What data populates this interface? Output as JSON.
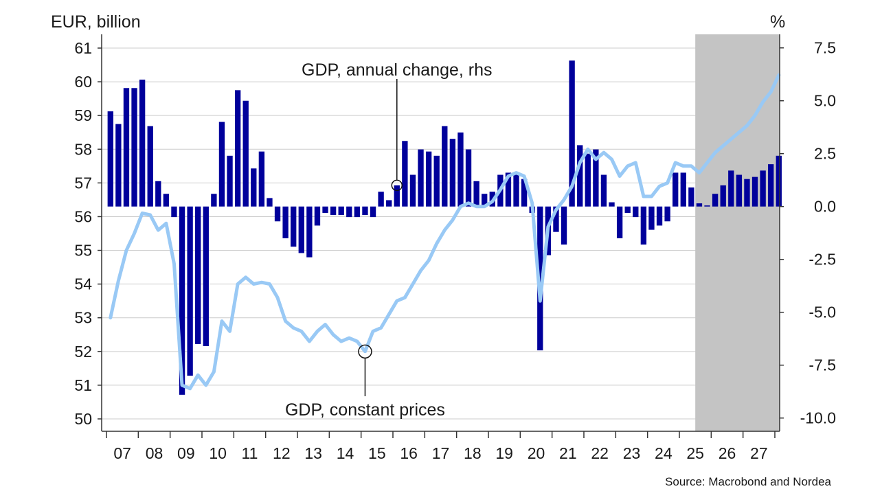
{
  "chart_data": {
    "type": "bar+line",
    "left_axis_label": "EUR, billion",
    "right_axis_label": "%",
    "left_ylim": [
      50,
      61
    ],
    "left_ticks": [
      "50",
      "51",
      "52",
      "53",
      "54",
      "55",
      "56",
      "57",
      "58",
      "59",
      "60",
      "61"
    ],
    "right_ylim": [
      -10,
      7.5
    ],
    "right_ticks": [
      "-10.0",
      "-7.5",
      "-5.0",
      "-2.5",
      "0.0",
      "2.5",
      "5.0",
      "7.5"
    ],
    "x_ticks": [
      "07",
      "08",
      "09",
      "10",
      "11",
      "12",
      "13",
      "14",
      "15",
      "16",
      "17",
      "18",
      "19",
      "20",
      "21",
      "22",
      "23",
      "24",
      "25",
      "26",
      "27"
    ],
    "forecast_shade_start": "2025Q3",
    "annotations": {
      "annual_change": "GDP, annual change, rhs",
      "constant_prices": "GDP, constant prices"
    },
    "source": "Source: Macrobond and Nordea",
    "colors": {
      "bars": "#00009b",
      "line": "#99c9f5",
      "shade": "#c4c4c4",
      "grid": "#cccccc"
    },
    "series": [
      {
        "name": "GDP, annual change, rhs",
        "axis": "right",
        "kind": "bar",
        "start": "2007Q1",
        "values": [
          4.5,
          3.9,
          5.6,
          5.6,
          6.0,
          3.8,
          1.2,
          0.6,
          -0.5,
          -8.9,
          -8.0,
          -6.5,
          -6.6,
          0.6,
          4.0,
          2.4,
          5.5,
          5.0,
          1.8,
          2.6,
          0.4,
          -0.7,
          -1.5,
          -1.9,
          -2.2,
          -2.4,
          -0.9,
          -0.3,
          -0.4,
          -0.4,
          -0.5,
          -0.5,
          -0.4,
          -0.5,
          0.7,
          0.3,
          1.0,
          3.1,
          1.5,
          2.7,
          2.6,
          2.4,
          3.8,
          3.2,
          3.5,
          2.7,
          1.2,
          0.6,
          0.7,
          1.5,
          1.6,
          1.5,
          1.3,
          -0.3,
          -6.8,
          -2.3,
          -1.2,
          -1.8,
          6.9,
          2.9,
          2.5,
          2.7,
          1.5,
          0.2,
          -1.5,
          -0.3,
          -0.5,
          -1.8,
          -1.1,
          -0.9,
          -0.7,
          1.6,
          1.6,
          0.9,
          0.15,
          0.05,
          0.6,
          1.0,
          1.7,
          1.5,
          1.3,
          1.4,
          1.7,
          2.0,
          2.4
        ]
      },
      {
        "name": "GDP, constant prices",
        "axis": "left",
        "kind": "line",
        "start": "2007Q1",
        "values": [
          53.0,
          54.1,
          55.0,
          55.5,
          56.1,
          56.05,
          55.6,
          55.8,
          54.6,
          51.0,
          50.9,
          51.3,
          51.0,
          51.4,
          52.9,
          52.6,
          54.0,
          54.2,
          54.0,
          54.05,
          54.0,
          53.6,
          52.9,
          52.7,
          52.6,
          52.3,
          52.6,
          52.8,
          52.5,
          52.3,
          52.4,
          52.3,
          52.0,
          52.6,
          52.7,
          53.1,
          53.5,
          53.6,
          54.0,
          54.4,
          54.7,
          55.2,
          55.6,
          55.9,
          56.3,
          56.4,
          56.3,
          56.3,
          56.45,
          56.8,
          57.2,
          57.3,
          57.2,
          56.4,
          53.5,
          55.7,
          56.2,
          56.5,
          56.9,
          57.6,
          58.0,
          57.7,
          57.9,
          57.7,
          57.2,
          57.5,
          57.6,
          56.6,
          56.6,
          56.9,
          57.0,
          57.6,
          57.5,
          57.5,
          57.3,
          57.6,
          57.9,
          58.1,
          58.3,
          58.5,
          58.7,
          59.0,
          59.4,
          59.7,
          60.2
        ]
      }
    ],
    "highlight_points": {
      "annual_change": "2016Q1",
      "constant_prices": "2015Q1"
    }
  }
}
